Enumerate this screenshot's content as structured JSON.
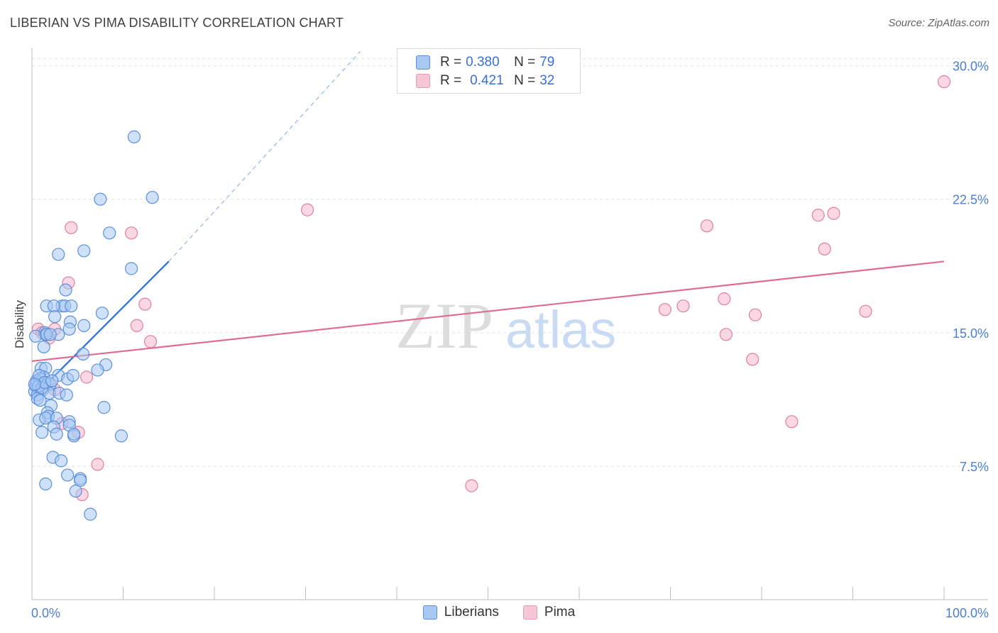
{
  "title": "LIBERIAN VS PIMA DISABILITY CORRELATION CHART",
  "source": "Source: ZipAtlas.com",
  "watermark": {
    "zip": "ZIP",
    "atlas": "atlas"
  },
  "legend": {
    "rows": [
      {
        "r_label": "R = ",
        "r_value": "0.380",
        "n_label": "N = ",
        "n_value": "79"
      },
      {
        "r_label": "R = ",
        "r_value": "0.421",
        "n_label": "N = ",
        "n_value": "32"
      }
    ]
  },
  "bottom_legend": [
    "Liberians",
    "Pima"
  ],
  "colors": {
    "liberians_fill": "#a8c8f4",
    "liberians_stroke": "#5b8fd9",
    "liberians_line": "#2a6fd6",
    "pima_fill": "#f5b7cb",
    "pima_stroke": "#e07fa0",
    "pima_line": "#e06a95",
    "tick_label": "#4a7fd4",
    "grid": "#e3e3e3"
  },
  "chart_data": {
    "type": "scatter",
    "title": "LIBERIAN VS PIMA DISABILITY CORRELATION CHART",
    "xlabel": "",
    "ylabel": "Disability",
    "xlim": [
      0,
      100
    ],
    "ylim": [
      0,
      30.9
    ],
    "x_tick_labels": [
      "0.0%",
      "100.0%"
    ],
    "y_ticks": [
      7.5,
      15.0,
      22.5,
      30.0
    ],
    "y_tick_labels": [
      "7.5%",
      "15.0%",
      "22.5%",
      "30.0%"
    ],
    "grid": "horizontal dashed",
    "legend_position": "top-center",
    "series": [
      {
        "name": "Liberians",
        "r": 0.38,
        "n": 79,
        "trend": {
          "x": [
            0,
            15
          ],
          "y": [
            11.3,
            19.0
          ],
          "extended_to": [
            36,
            30.8
          ]
        },
        "points": [
          [
            11.2,
            26.0
          ],
          [
            13.2,
            22.6
          ],
          [
            7.5,
            22.5
          ],
          [
            8.5,
            20.6
          ],
          [
            5.7,
            19.6
          ],
          [
            2.9,
            19.4
          ],
          [
            10.9,
            18.6
          ],
          [
            3.7,
            17.4
          ],
          [
            1.6,
            16.5
          ],
          [
            3.3,
            16.5
          ],
          [
            3.6,
            16.5
          ],
          [
            4.3,
            16.5
          ],
          [
            2.4,
            16.5
          ],
          [
            7.7,
            16.1
          ],
          [
            2.5,
            15.9
          ],
          [
            4.2,
            15.6
          ],
          [
            5.7,
            15.4
          ],
          [
            1.4,
            15.0
          ],
          [
            1.5,
            14.9
          ],
          [
            2.9,
            14.9
          ],
          [
            4.1,
            15.2
          ],
          [
            0.4,
            14.8
          ],
          [
            1.6,
            14.9
          ],
          [
            2.0,
            14.9
          ],
          [
            1.3,
            14.2
          ],
          [
            5.6,
            13.8
          ],
          [
            8.1,
            13.2
          ],
          [
            7.2,
            12.9
          ],
          [
            1.0,
            13.0
          ],
          [
            1.5,
            13.0
          ],
          [
            2.9,
            12.6
          ],
          [
            3.9,
            12.4
          ],
          [
            4.5,
            12.6
          ],
          [
            1.3,
            12.5
          ],
          [
            0.9,
            12.4
          ],
          [
            1.7,
            12.2
          ],
          [
            2.0,
            12.1
          ],
          [
            0.5,
            12.2
          ],
          [
            0.4,
            12.0
          ],
          [
            1.0,
            12.1
          ],
          [
            0.6,
            11.9
          ],
          [
            1.2,
            11.8
          ],
          [
            0.3,
            11.7
          ],
          [
            0.6,
            11.5
          ],
          [
            1.9,
            11.6
          ],
          [
            3.0,
            11.6
          ],
          [
            3.8,
            11.5
          ],
          [
            0.6,
            11.3
          ],
          [
            0.9,
            11.2
          ],
          [
            2.1,
            10.9
          ],
          [
            7.9,
            10.8
          ],
          [
            1.7,
            10.5
          ],
          [
            1.8,
            10.3
          ],
          [
            0.8,
            10.1
          ],
          [
            1.5,
            10.2
          ],
          [
            2.7,
            10.2
          ],
          [
            4.1,
            10.0
          ],
          [
            4.1,
            9.8
          ],
          [
            2.4,
            9.7
          ],
          [
            4.6,
            9.2
          ],
          [
            4.6,
            9.3
          ],
          [
            1.1,
            9.4
          ],
          [
            2.7,
            9.3
          ],
          [
            9.8,
            9.2
          ],
          [
            2.3,
            8.0
          ],
          [
            3.2,
            7.8
          ],
          [
            3.9,
            7.0
          ],
          [
            5.3,
            6.8
          ],
          [
            5.3,
            6.7
          ],
          [
            1.5,
            6.5
          ],
          [
            4.8,
            6.1
          ],
          [
            6.4,
            4.8
          ],
          [
            0.5,
            12.3
          ],
          [
            0.7,
            12.0
          ],
          [
            1.1,
            11.9
          ],
          [
            0.8,
            12.6
          ],
          [
            1.4,
            12.2
          ],
          [
            0.3,
            12.1
          ],
          [
            2.2,
            12.3
          ]
        ]
      },
      {
        "name": "Pima",
        "r": 0.421,
        "n": 32,
        "trend": {
          "x": [
            0,
            100
          ],
          "y": [
            13.4,
            19.0
          ]
        },
        "points": [
          [
            100.0,
            29.1
          ],
          [
            30.2,
            21.9
          ],
          [
            87.9,
            21.7
          ],
          [
            86.2,
            21.6
          ],
          [
            74.0,
            21.0
          ],
          [
            4.3,
            20.9
          ],
          [
            10.9,
            20.6
          ],
          [
            86.9,
            19.7
          ],
          [
            4.0,
            17.8
          ],
          [
            75.9,
            16.9
          ],
          [
            12.4,
            16.6
          ],
          [
            71.4,
            16.5
          ],
          [
            69.4,
            16.3
          ],
          [
            91.4,
            16.2
          ],
          [
            79.3,
            16.0
          ],
          [
            11.5,
            15.4
          ],
          [
            0.7,
            15.2
          ],
          [
            2.5,
            15.2
          ],
          [
            1.1,
            15.0
          ],
          [
            1.9,
            14.7
          ],
          [
            76.1,
            14.9
          ],
          [
            13.0,
            14.5
          ],
          [
            79.0,
            13.5
          ],
          [
            6.0,
            12.5
          ],
          [
            2.5,
            11.8
          ],
          [
            83.3,
            10.0
          ],
          [
            3.3,
            9.9
          ],
          [
            5.1,
            9.4
          ],
          [
            7.2,
            7.6
          ],
          [
            48.2,
            6.4
          ],
          [
            5.5,
            5.9
          ],
          [
            1.6,
            14.9
          ]
        ]
      }
    ]
  }
}
